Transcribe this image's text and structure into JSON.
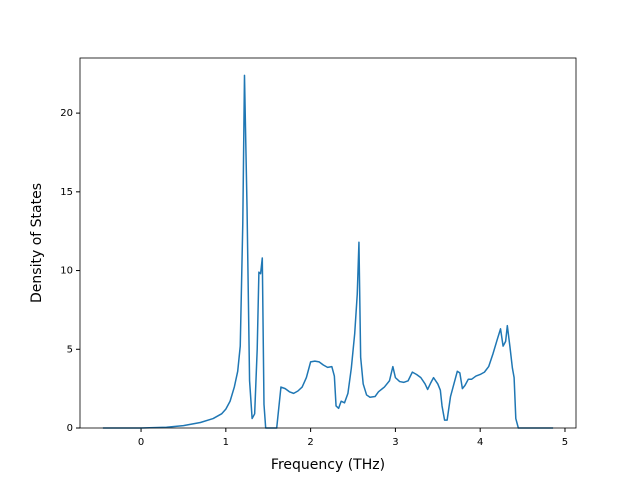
{
  "chart_data": {
    "type": "line",
    "xlabel": "Frequency (THz)",
    "ylabel": "Density of States",
    "xlim": [
      -0.72,
      5.13
    ],
    "ylim": [
      0,
      23.5
    ],
    "xticks": [
      0,
      1,
      2,
      3,
      4,
      5
    ],
    "yticks": [
      0,
      5,
      10,
      15,
      20
    ],
    "x": [
      -0.45,
      0,
      0.3,
      0.5,
      0.7,
      0.85,
      0.95,
      1.0,
      1.05,
      1.1,
      1.14,
      1.17,
      1.2,
      1.22,
      1.25,
      1.28,
      1.31,
      1.34,
      1.37,
      1.39,
      1.41,
      1.43,
      1.45,
      1.47,
      1.6,
      1.65,
      1.7,
      1.75,
      1.8,
      1.85,
      1.9,
      1.95,
      2.0,
      2.05,
      2.1,
      2.15,
      2.2,
      2.25,
      2.28,
      2.3,
      2.33,
      2.36,
      2.4,
      2.44,
      2.48,
      2.52,
      2.55,
      2.57,
      2.59,
      2.62,
      2.66,
      2.7,
      2.76,
      2.8,
      2.87,
      2.93,
      2.97,
      3.0,
      3.05,
      3.1,
      3.15,
      3.2,
      3.25,
      3.3,
      3.35,
      3.38,
      3.42,
      3.45,
      3.5,
      3.53,
      3.55,
      3.58,
      3.61,
      3.65,
      3.7,
      3.73,
      3.76,
      3.79,
      3.82,
      3.86,
      3.9,
      3.95,
      4.0,
      4.05,
      4.1,
      4.15,
      4.2,
      4.24,
      4.27,
      4.3,
      4.32,
      4.35,
      4.38,
      4.4,
      4.42,
      4.45,
      4.86
    ],
    "series": [
      {
        "name": "DOS",
        "color": "#1f77b4",
        "values": [
          0,
          0,
          0.05,
          0.15,
          0.35,
          0.6,
          0.9,
          1.2,
          1.7,
          2.6,
          3.6,
          5.2,
          13,
          22.4,
          14,
          3,
          0.6,
          0.9,
          5,
          9.9,
          9.8,
          10.8,
          1.5,
          0,
          0,
          2.6,
          2.5,
          2.3,
          2.2,
          2.35,
          2.6,
          3.2,
          4.2,
          4.25,
          4.2,
          4.0,
          3.85,
          3.9,
          3.3,
          1.4,
          1.25,
          1.7,
          1.6,
          2.2,
          3.8,
          6,
          8.5,
          11.8,
          4.5,
          2.8,
          2.1,
          1.95,
          2.0,
          2.3,
          2.6,
          3.0,
          3.9,
          3.2,
          2.95,
          2.9,
          3.0,
          3.55,
          3.4,
          3.2,
          2.8,
          2.45,
          2.9,
          3.2,
          2.8,
          2.4,
          1.4,
          0.5,
          0.5,
          2.0,
          3.0,
          3.6,
          3.5,
          2.5,
          2.7,
          3.1,
          3.1,
          3.3,
          3.4,
          3.55,
          3.9,
          4.7,
          5.6,
          6.3,
          5.2,
          5.5,
          6.5,
          5.2,
          3.8,
          3.2,
          0.6,
          0,
          0
        ]
      }
    ]
  }
}
